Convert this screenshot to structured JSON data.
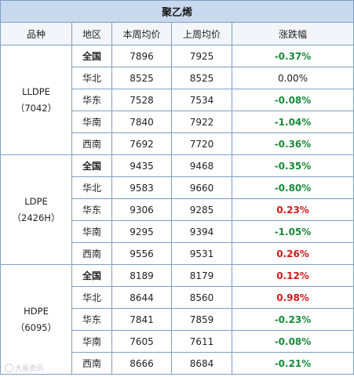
{
  "title": "聚乙烯",
  "headers": [
    "品种",
    "地区",
    "本周均价",
    "上周均价",
    "涨跌幅"
  ],
  "groups": [
    {
      "product": "LLDPE",
      "code": "（7042）",
      "rows": [
        {
          "region": "全国",
          "this_week": "7896",
          "last_week": "7925",
          "change": "-0.37%",
          "trend": "down"
        },
        {
          "region": "华北",
          "this_week": "8525",
          "last_week": "8525",
          "change": "0.00%",
          "trend": "flat"
        },
        {
          "region": "华东",
          "this_week": "7528",
          "last_week": "7534",
          "change": "-0.08%",
          "trend": "down"
        },
        {
          "region": "华南",
          "this_week": "7840",
          "last_week": "7922",
          "change": "-1.04%",
          "trend": "down"
        },
        {
          "region": "西南",
          "this_week": "7692",
          "last_week": "7720",
          "change": "-0.36%",
          "trend": "down"
        }
      ]
    },
    {
      "product": "LDPE",
      "code": "（2426H）",
      "rows": [
        {
          "region": "全国",
          "this_week": "9435",
          "last_week": "9468",
          "change": "-0.35%",
          "trend": "down"
        },
        {
          "region": "华北",
          "this_week": "9583",
          "last_week": "9660",
          "change": "-0.80%",
          "trend": "down"
        },
        {
          "region": "华东",
          "this_week": "9306",
          "last_week": "9285",
          "change": "0.23%",
          "trend": "up"
        },
        {
          "region": "华南",
          "this_week": "9295",
          "last_week": "9394",
          "change": "-1.05%",
          "trend": "down"
        },
        {
          "region": "西南",
          "this_week": "9556",
          "last_week": "9531",
          "change": "0.26%",
          "trend": "up"
        }
      ]
    },
    {
      "product": "HDPE",
      "code": "（6095）",
      "rows": [
        {
          "region": "全国",
          "this_week": "8189",
          "last_week": "8179",
          "change": "0.12%",
          "trend": "up"
        },
        {
          "region": "华北",
          "this_week": "8644",
          "last_week": "8560",
          "change": "0.98%",
          "trend": "up"
        },
        {
          "region": "华东",
          "this_week": "7841",
          "last_week": "7859",
          "change": "-0.23%",
          "trend": "down"
        },
        {
          "region": "华南",
          "this_week": "7605",
          "last_week": "7611",
          "change": "-0.08%",
          "trend": "down"
        },
        {
          "region": "西南",
          "this_week": "8666",
          "last_week": "8684",
          "change": "-0.21%",
          "trend": "down"
        }
      ]
    }
  ],
  "watermark": "大易资讯",
  "colors": {
    "up": "#d01a1a",
    "down": "#1a8a3a",
    "title_bg": "#c9d9ee",
    "border": "#7f9fc4"
  }
}
